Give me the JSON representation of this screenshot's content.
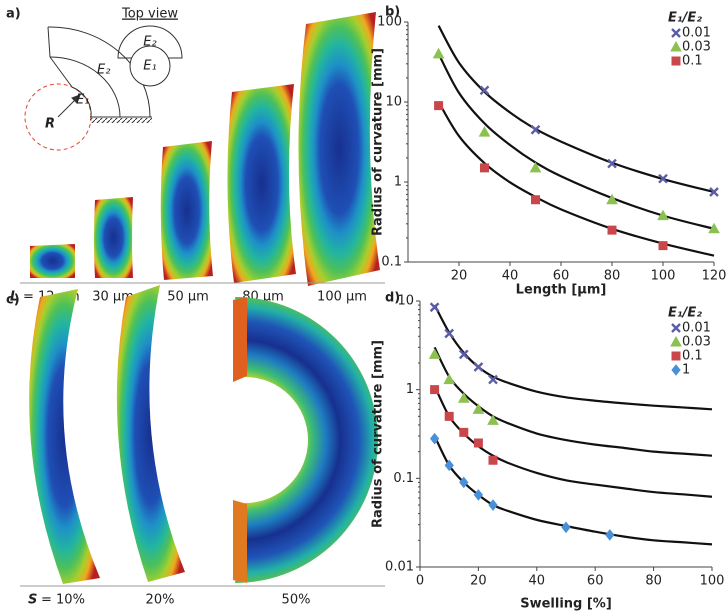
{
  "panel_a": {
    "label": "a)",
    "top_view": "Top view",
    "top_view_outer": "E₂",
    "top_view_inner": "E₁",
    "outer_layer": "E₂",
    "inner_layer": "E₁",
    "radius": "R",
    "length_symbol": "L",
    "length_labels": [
      "= 12 µm",
      "30 µm",
      "50 µm",
      "80 µm",
      "100 µm"
    ]
  },
  "panel_c": {
    "label": "c)",
    "swelling_symbol": "S",
    "swelling_labels": [
      "= 10%",
      "20%",
      "50%"
    ]
  },
  "chart_data": [
    {
      "type": "scatter",
      "panel_label": "b)",
      "x_label": "Length [µm]",
      "y_label": "Radius of curvature [mm]",
      "legend_title": "E₁/E₂",
      "log_y": true,
      "xlim": [
        0,
        120
      ],
      "xticks": [
        20,
        40,
        60,
        80,
        100,
        120
      ],
      "ylim": [
        0.1,
        100
      ],
      "yticks": [
        0.1,
        1,
        10,
        100
      ],
      "series": [
        {
          "name": "0.01",
          "color": "#5b5ea6",
          "marker": "x",
          "x": [
            30,
            50,
            80,
            100,
            120
          ],
          "values": [
            14,
            4.5,
            1.7,
            1.1,
            0.75
          ]
        },
        {
          "name": "0.03",
          "color": "#8cc152",
          "marker": "triangle",
          "x": [
            12,
            30,
            50,
            80,
            100,
            120
          ],
          "values": [
            40,
            4.2,
            1.5,
            0.6,
            0.38,
            0.26
          ]
        },
        {
          "name": "0.1",
          "color": "#c9474a",
          "marker": "square",
          "x": [
            12,
            30,
            50,
            80,
            100
          ],
          "values": [
            9,
            1.5,
            0.6,
            0.25,
            0.16
          ]
        }
      ],
      "fits": [
        {
          "x": [
            12,
            20,
            30,
            40,
            50,
            60,
            80,
            100,
            120
          ],
          "values": [
            90,
            31,
            13.4,
            7.4,
            4.6,
            3.2,
            1.74,
            1.09,
            0.75
          ]
        },
        {
          "x": [
            12,
            20,
            30,
            40,
            50,
            60,
            80,
            100,
            120
          ],
          "values": [
            40,
            13,
            5.4,
            2.9,
            1.75,
            1.18,
            0.63,
            0.38,
            0.26
          ]
        },
        {
          "x": [
            12,
            20,
            30,
            40,
            50,
            60,
            80,
            100,
            120
          ],
          "values": [
            10,
            3.75,
            1.72,
            0.99,
            0.65,
            0.455,
            0.26,
            0.17,
            0.12
          ]
        }
      ]
    },
    {
      "type": "scatter",
      "panel_label": "d)",
      "x_label": "Swelling [%]",
      "y_label": "Radius of curvature [mm]",
      "legend_title": "E₁/E₂",
      "log_y": true,
      "xlim": [
        0,
        100
      ],
      "xticks": [
        0,
        20,
        40,
        60,
        80,
        100
      ],
      "ylim": [
        0.01,
        10
      ],
      "yticks": [
        0.01,
        0.1,
        1,
        10
      ],
      "series": [
        {
          "name": "0.01",
          "color": "#5b5ea6",
          "marker": "x",
          "x": [
            5,
            10,
            15,
            20,
            25
          ],
          "values": [
            8.5,
            4.3,
            2.5,
            1.8,
            1.3
          ]
        },
        {
          "name": "0.03",
          "color": "#8cc152",
          "marker": "triangle",
          "x": [
            5,
            10,
            15,
            20,
            25
          ],
          "values": [
            2.5,
            1.3,
            0.8,
            0.6,
            0.45
          ]
        },
        {
          "name": "0.1",
          "color": "#c9474a",
          "marker": "square",
          "x": [
            5,
            10,
            15,
            20,
            25
          ],
          "values": [
            1,
            0.5,
            0.33,
            0.25,
            0.16
          ]
        },
        {
          "name": "1",
          "color": "#4a90d9",
          "marker": "diamond",
          "x": [
            5,
            10,
            15,
            20,
            25,
            50,
            65
          ],
          "values": [
            0.28,
            0.14,
            0.09,
            0.065,
            0.05,
            0.028,
            0.023
          ]
        }
      ],
      "fits": [
        {
          "x": [
            5,
            10,
            15,
            20,
            25,
            30,
            40,
            50,
            60,
            70,
            80,
            90,
            100
          ],
          "values": [
            9,
            4.4,
            2.6,
            1.8,
            1.4,
            1.2,
            0.95,
            0.82,
            0.75,
            0.7,
            0.66,
            0.63,
            0.6
          ]
        },
        {
          "x": [
            5,
            10,
            15,
            20,
            25,
            30,
            40,
            50,
            60,
            70,
            80,
            90,
            100
          ],
          "values": [
            3,
            1.4,
            0.9,
            0.65,
            0.5,
            0.42,
            0.32,
            0.27,
            0.24,
            0.22,
            0.2,
            0.19,
            0.18
          ]
        },
        {
          "x": [
            5,
            10,
            15,
            20,
            25,
            30,
            40,
            50,
            60,
            70,
            80,
            90,
            100
          ],
          "values": [
            1.1,
            0.5,
            0.32,
            0.23,
            0.18,
            0.15,
            0.115,
            0.095,
            0.085,
            0.077,
            0.07,
            0.066,
            0.062
          ]
        },
        {
          "x": [
            5,
            10,
            15,
            20,
            25,
            30,
            40,
            50,
            60,
            70,
            80,
            90,
            100
          ],
          "values": [
            0.3,
            0.14,
            0.09,
            0.065,
            0.05,
            0.043,
            0.034,
            0.029,
            0.025,
            0.022,
            0.02,
            0.019,
            0.018
          ]
        }
      ]
    }
  ]
}
